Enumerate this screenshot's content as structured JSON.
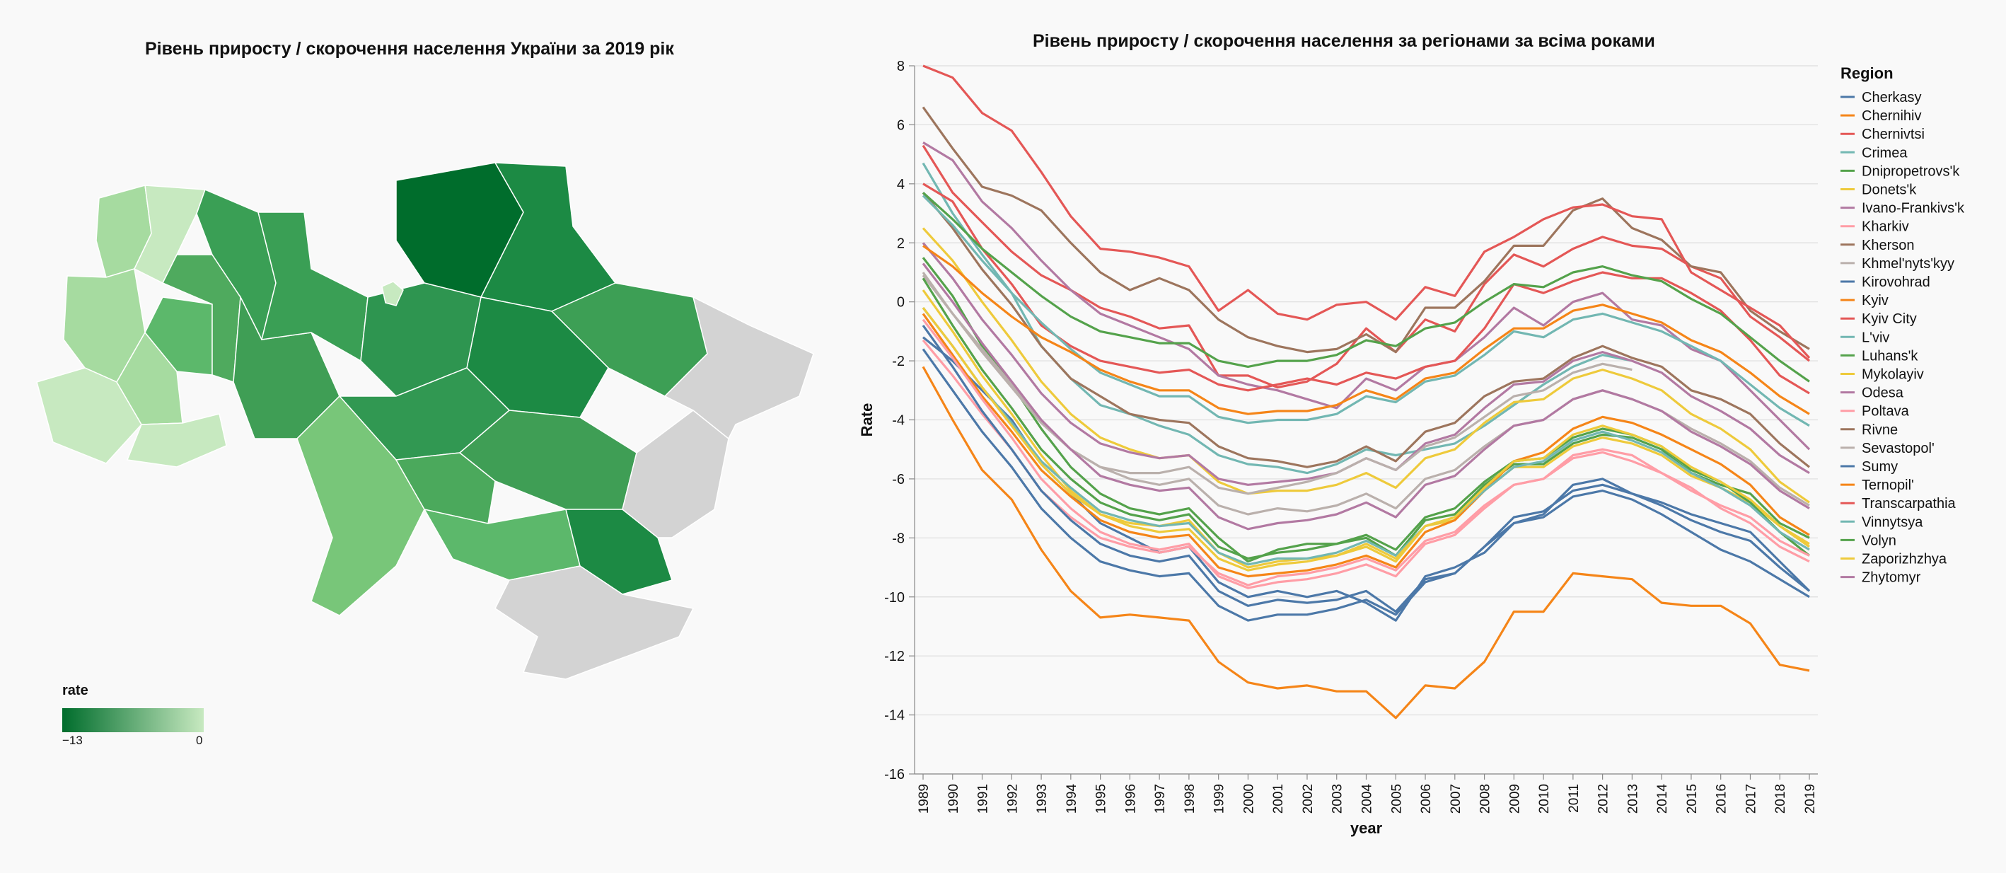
{
  "map": {
    "title": "Рівень приросту / скорочення населення України за 2019 рік",
    "legend_title": "rate",
    "legend_min_label": "−13",
    "legend_max_label": "0",
    "color_dark": "#006d2c",
    "color_light": "#c7e9c0",
    "no_data_color": "#d3d3d3"
  },
  "chart_data": {
    "type": "line",
    "title": "Рівень приросту / скорочення населення за регіонами за всіма роками",
    "xlabel": "year",
    "ylabel": "Rate",
    "ylim": [
      -16,
      8
    ],
    "y_ticks": [
      8,
      6,
      4,
      2,
      0,
      -2,
      -4,
      -6,
      -8,
      -10,
      -12,
      -14,
      -16
    ],
    "grid": "horizontal",
    "legend_title": "Region",
    "legend_position": "right",
    "x": [
      "1989",
      "1990",
      "1991",
      "1992",
      "1993",
      "1994",
      "1995",
      "1996",
      "1997",
      "1998",
      "1999",
      "2000",
      "2001",
      "2002",
      "2003",
      "2004",
      "2005",
      "2006",
      "2007",
      "2008",
      "2009",
      "2010",
      "2011",
      "2012",
      "2013",
      "2014",
      "2015",
      "2016",
      "2017",
      "2018",
      "2019"
    ],
    "series": [
      {
        "name": "Cherkasy",
        "color": "#4c78a8",
        "values": [
          -1.2,
          -2.0,
          -3.0,
          -4.0,
          -5.5,
          -6.5,
          -7.5,
          -8.0,
          -8.5,
          -8.3,
          -9.5,
          -10.0,
          -9.8,
          -10.0,
          -9.8,
          -10.2,
          -10.8,
          -9.3,
          -9.0,
          -8.5,
          -7.5,
          -7.2,
          -6.2,
          -6.0,
          -6.5,
          -6.8,
          -7.2,
          -7.5,
          -7.8,
          -8.8,
          -9.8
        ]
      },
      {
        "name": "Chernihiv",
        "color": "#f58518",
        "values": [
          -2.2,
          -4.0,
          -5.7,
          -6.7,
          -8.4,
          -9.8,
          -10.7,
          -10.6,
          -10.7,
          -10.8,
          -12.2,
          -12.9,
          -13.1,
          -13.0,
          -13.2,
          -13.2,
          -14.1,
          -13.0,
          -13.1,
          -12.2,
          -10.5,
          -10.5,
          -9.2,
          -9.3,
          -9.4,
          -10.2,
          -10.3,
          -10.3,
          -10.9,
          -12.3,
          -12.5
        ]
      },
      {
        "name": "Chernivtsi",
        "color": "#e45756",
        "values": [
          5.3,
          3.7,
          2.7,
          1.7,
          0.9,
          0.4,
          -0.2,
          -0.5,
          -0.9,
          -0.8,
          -2.5,
          -2.5,
          -2.9,
          -2.7,
          -2.1,
          -0.9,
          -1.7,
          -0.6,
          -1.0,
          0.6,
          1.6,
          1.2,
          1.8,
          2.2,
          1.9,
          1.8,
          1.2,
          0.8,
          -0.5,
          -1.2,
          -2.0
        ]
      },
      {
        "name": "Crimea",
        "color": "#72b7b2",
        "values": [
          4.7,
          3.0,
          1.6,
          0.3,
          -1.5,
          -2.6,
          -3.5,
          -3.8,
          -4.2,
          -4.5,
          -5.2,
          -5.5,
          -5.6,
          -5.8,
          -5.5,
          -5.0,
          -5.2,
          -5.0,
          -4.8,
          -4.2,
          -3.5,
          -2.8,
          -2.2,
          -1.8,
          -2.0,
          null,
          null,
          null,
          null,
          null,
          null
        ]
      },
      {
        "name": "Dnipropetrovs'k",
        "color": "#54a24b",
        "values": [
          1.5,
          0.2,
          -1.5,
          -2.8,
          -4.3,
          -5.6,
          -6.5,
          -7.0,
          -7.2,
          -7.0,
          -8.0,
          -8.8,
          -8.4,
          -8.2,
          -8.2,
          -8.0,
          -8.6,
          -7.4,
          -7.2,
          -6.2,
          -5.5,
          -5.5,
          -4.8,
          -4.5,
          -4.6,
          -5.0,
          -5.8,
          -6.2,
          -6.5,
          -7.5,
          -8.0
        ]
      },
      {
        "name": "Donets'k",
        "color": "#eeca3b",
        "values": [
          0.4,
          -1.0,
          -2.5,
          -3.8,
          -5.2,
          -6.4,
          -7.2,
          -7.5,
          -7.6,
          -7.4,
          -8.5,
          -9.0,
          -8.8,
          -8.7,
          -8.6,
          -8.3,
          -8.8,
          -7.6,
          -7.4,
          -6.4,
          -5.6,
          -5.6,
          -4.9,
          -4.6,
          -4.8,
          -5.2,
          -5.9,
          -6.3,
          -6.8,
          -7.6,
          -8.2
        ]
      },
      {
        "name": "Ivano-Frankivs'k",
        "color": "#b279a2",
        "values": [
          5.4,
          4.8,
          3.4,
          2.5,
          1.4,
          0.4,
          -0.4,
          -0.8,
          -1.2,
          -1.6,
          -2.5,
          -2.8,
          -3.0,
          -3.3,
          -3.6,
          -2.6,
          -3.0,
          -2.2,
          -2.0,
          -1.2,
          -0.2,
          -0.8,
          0.0,
          0.3,
          -0.6,
          -0.8,
          -1.6,
          -2.0,
          -3.0,
          -4.0,
          -5.0
        ]
      },
      {
        "name": "Kharkiv",
        "color": "#ff9da6",
        "values": [
          -1.3,
          -2.5,
          -3.8,
          -5.0,
          -6.4,
          -7.3,
          -8.0,
          -8.3,
          -8.5,
          -8.3,
          -9.2,
          -9.6,
          -9.3,
          -9.2,
          -9.0,
          -8.7,
          -9.1,
          -8.1,
          -7.8,
          -6.9,
          -6.2,
          -6.0,
          -5.2,
          -5.0,
          -5.2,
          -5.8,
          -6.3,
          -7.0,
          -7.5,
          -8.3,
          -8.8
        ]
      },
      {
        "name": "Kherson",
        "color": "#9d755d",
        "values": [
          3.7,
          2.5,
          1.1,
          -0.1,
          -1.5,
          -2.6,
          -3.2,
          -3.8,
          -4.0,
          -4.1,
          -4.9,
          -5.3,
          -5.4,
          -5.6,
          -5.4,
          -4.9,
          -5.4,
          -4.4,
          -4.1,
          -3.2,
          -2.7,
          -2.6,
          -1.9,
          -1.5,
          -1.9,
          -2.2,
          -3.0,
          -3.3,
          -3.8,
          -4.8,
          -5.6
        ]
      },
      {
        "name": "Khmel'nyts'kyy",
        "color": "#bab0ac",
        "values": [
          0.9,
          -0.4,
          -1.6,
          -2.8,
          -4.1,
          -5.0,
          -5.6,
          -6.0,
          -6.2,
          -6.0,
          -6.9,
          -7.2,
          -7.0,
          -7.1,
          -6.9,
          -6.5,
          -7.0,
          -6.0,
          -5.7,
          -4.9,
          -4.2,
          -4.0,
          -3.3,
          -3.0,
          -3.3,
          -3.7,
          -4.3,
          -4.8,
          -5.4,
          -6.3,
          -6.9
        ]
      },
      {
        "name": "Kirovohrad",
        "color": "#4c78a8",
        "values": [
          -0.8,
          -2.2,
          -3.7,
          -5.0,
          -6.4,
          -7.4,
          -8.2,
          -8.6,
          -8.8,
          -8.6,
          -9.8,
          -10.3,
          -10.1,
          -10.2,
          -10.1,
          -9.8,
          -10.5,
          -9.4,
          -9.2,
          -8.3,
          -7.3,
          -7.1,
          -6.4,
          -6.2,
          -6.5,
          -6.9,
          -7.4,
          -7.8,
          -8.1,
          -9.0,
          -9.8
        ]
      },
      {
        "name": "Kyiv",
        "color": "#f58518",
        "values": [
          -0.4,
          -1.8,
          -3.2,
          -4.4,
          -5.7,
          -6.6,
          -7.4,
          -7.8,
          -8.0,
          -7.9,
          -9.0,
          -9.3,
          -9.2,
          -9.1,
          -8.9,
          -8.6,
          -9.0,
          -7.8,
          -7.4,
          -6.4,
          -5.4,
          -5.1,
          -4.3,
          -3.9,
          -4.1,
          -4.5,
          -5.0,
          -5.5,
          -6.2,
          -7.3,
          -7.9
        ]
      },
      {
        "name": "Kyiv City",
        "color": "#e45756",
        "values": [
          4.0,
          3.4,
          1.8,
          0.6,
          -0.8,
          -1.5,
          -2.0,
          -2.2,
          -2.4,
          -2.3,
          -2.8,
          -3.0,
          -2.8,
          -2.6,
          -2.8,
          -2.4,
          -2.6,
          -2.2,
          -2.0,
          -0.9,
          0.6,
          0.3,
          0.7,
          1.0,
          0.8,
          0.8,
          0.3,
          -0.3,
          -1.3,
          -2.5,
          -3.1
        ]
      },
      {
        "name": "L'viv",
        "color": "#72b7b2",
        "values": [
          3.6,
          2.6,
          1.4,
          0.3,
          -0.7,
          -1.6,
          -2.4,
          -2.8,
          -3.2,
          -3.2,
          -3.9,
          -4.1,
          -4.0,
          -4.0,
          -3.8,
          -3.2,
          -3.4,
          -2.7,
          -2.5,
          -1.8,
          -1.0,
          -1.2,
          -0.6,
          -0.4,
          -0.7,
          -1.0,
          -1.5,
          -2.0,
          -2.8,
          -3.6,
          -4.2
        ]
      },
      {
        "name": "Luhans'k",
        "color": "#54a24b",
        "values": [
          0.8,
          -0.8,
          -2.3,
          -3.6,
          -5.0,
          -6.0,
          -6.8,
          -7.2,
          -7.4,
          -7.2,
          -8.3,
          -8.7,
          -8.5,
          -8.4,
          -8.2,
          -7.9,
          -8.4,
          -7.3,
          -7.0,
          -6.1,
          -5.4,
          -5.3,
          -4.6,
          -4.3,
          -4.5,
          -4.9,
          -5.7,
          -6.1,
          -6.8,
          -7.8,
          -8.6
        ]
      },
      {
        "name": "Mykolayiv",
        "color": "#eeca3b",
        "values": [
          2.5,
          1.4,
          0.0,
          -1.3,
          -2.7,
          -3.8,
          -4.6,
          -5.0,
          -5.3,
          -5.2,
          -6.1,
          -6.5,
          -6.4,
          -6.4,
          -6.2,
          -5.8,
          -6.3,
          -5.3,
          -5.0,
          -4.1,
          -3.4,
          -3.3,
          -2.6,
          -2.3,
          -2.6,
          -3.0,
          -3.8,
          -4.3,
          -5.0,
          -6.1,
          -6.8
        ]
      },
      {
        "name": "Odesa",
        "color": "#b279a2",
        "values": [
          2.0,
          0.8,
          -0.6,
          -1.8,
          -3.1,
          -4.1,
          -4.8,
          -5.1,
          -5.3,
          -5.2,
          -6.0,
          -6.2,
          -6.1,
          -6.0,
          -5.8,
          -5.3,
          -5.7,
          -4.8,
          -4.5,
          -3.6,
          -2.8,
          -2.7,
          -2.0,
          -1.7,
          -2.0,
          -2.4,
          -3.2,
          -3.7,
          -4.3,
          -5.2,
          -5.8
        ]
      },
      {
        "name": "Poltava",
        "color": "#ff9da6",
        "values": [
          -0.6,
          -1.9,
          -3.3,
          -4.6,
          -6.0,
          -7.0,
          -7.8,
          -8.2,
          -8.4,
          -8.2,
          -9.3,
          -9.7,
          -9.5,
          -9.4,
          -9.2,
          -8.9,
          -9.3,
          -8.2,
          -7.9,
          -7.0,
          -6.2,
          -6.0,
          -5.3,
          -5.1,
          -5.4,
          -5.8,
          -6.4,
          -6.9,
          -7.3,
          -8.1,
          -8.6
        ]
      },
      {
        "name": "Rivne",
        "color": "#9d755d",
        "values": [
          6.6,
          5.2,
          3.9,
          3.6,
          3.1,
          2.0,
          1.0,
          0.4,
          0.8,
          0.4,
          -0.6,
          -1.2,
          -1.5,
          -1.7,
          -1.6,
          -1.1,
          -1.7,
          -0.2,
          -0.2,
          0.7,
          1.9,
          1.9,
          3.1,
          3.5,
          2.5,
          2.1,
          1.2,
          1.0,
          -0.3,
          -1.0,
          -1.6
        ]
      },
      {
        "name": "Sevastopol'",
        "color": "#bab0ac",
        "values": [
          1.0,
          -0.4,
          -1.7,
          -2.9,
          -4.1,
          -5.0,
          -5.6,
          -5.8,
          -5.8,
          -5.6,
          -6.3,
          -6.5,
          -6.3,
          -6.1,
          -5.8,
          -5.3,
          -5.7,
          -4.9,
          -4.6,
          -3.9,
          -3.2,
          -3.0,
          -2.4,
          -2.1,
          -2.3,
          null,
          null,
          null,
          null,
          null,
          null
        ]
      },
      {
        "name": "Sumy",
        "color": "#4c78a8",
        "values": [
          -1.6,
          -3.0,
          -4.4,
          -5.6,
          -7.0,
          -8.0,
          -8.8,
          -9.1,
          -9.3,
          -9.2,
          -10.3,
          -10.8,
          -10.6,
          -10.6,
          -10.4,
          -10.1,
          -10.6,
          -9.5,
          -9.2,
          -8.3,
          -7.5,
          -7.3,
          -6.6,
          -6.4,
          -6.7,
          -7.2,
          -7.8,
          -8.4,
          -8.8,
          -9.4,
          -10.0
        ]
      },
      {
        "name": "Ternopil'",
        "color": "#f58518",
        "values": [
          1.9,
          1.2,
          0.3,
          -0.5,
          -1.2,
          -1.7,
          -2.3,
          -2.7,
          -3.0,
          -3.0,
          -3.6,
          -3.8,
          -3.7,
          -3.7,
          -3.5,
          -3.0,
          -3.3,
          -2.6,
          -2.4,
          -1.6,
          -0.9,
          -0.9,
          -0.3,
          -0.1,
          -0.4,
          -0.7,
          -1.3,
          -1.7,
          -2.4,
          -3.2,
          -3.8
        ]
      },
      {
        "name": "Transcarpathia",
        "color": "#e45756",
        "values": [
          8.0,
          7.6,
          6.4,
          5.8,
          4.4,
          2.9,
          1.8,
          1.7,
          1.5,
          1.2,
          -0.3,
          0.4,
          -0.4,
          -0.6,
          -0.1,
          0.0,
          -0.6,
          0.5,
          0.2,
          1.7,
          2.2,
          2.8,
          3.2,
          3.3,
          2.9,
          2.8,
          1.0,
          0.4,
          -0.2,
          -0.8,
          -1.9
        ]
      },
      {
        "name": "Vinnytsya",
        "color": "#72b7b2",
        "values": [
          -0.2,
          -1.5,
          -2.9,
          -4.1,
          -5.4,
          -6.3,
          -7.1,
          -7.4,
          -7.6,
          -7.5,
          -8.5,
          -8.9,
          -8.7,
          -8.7,
          -8.5,
          -8.1,
          -8.6,
          -7.6,
          -7.3,
          -6.4,
          -5.6,
          -5.4,
          -4.7,
          -4.4,
          -4.7,
          -5.1,
          -5.8,
          -6.3,
          -6.9,
          -7.8,
          -8.4
        ]
      },
      {
        "name": "Volyn",
        "color": "#54a24b",
        "values": [
          3.7,
          2.8,
          1.8,
          1.0,
          0.2,
          -0.5,
          -1.0,
          -1.2,
          -1.4,
          -1.4,
          -2.0,
          -2.2,
          -2.0,
          -2.0,
          -1.8,
          -1.3,
          -1.5,
          -0.9,
          -0.7,
          0.0,
          0.6,
          0.5,
          1.0,
          1.2,
          0.9,
          0.7,
          0.1,
          -0.4,
          -1.2,
          -2.0,
          -2.7
        ]
      },
      {
        "name": "Zaporizhzhya",
        "color": "#eeca3b",
        "values": [
          -0.2,
          -1.5,
          -2.9,
          -4.2,
          -5.5,
          -6.5,
          -7.2,
          -7.6,
          -7.8,
          -7.7,
          -8.7,
          -9.1,
          -8.9,
          -8.8,
          -8.6,
          -8.2,
          -8.7,
          -7.6,
          -7.3,
          -6.3,
          -5.4,
          -5.3,
          -4.5,
          -4.2,
          -4.5,
          -4.9,
          -5.6,
          -6.1,
          -6.7,
          -7.6,
          -8.3
        ]
      },
      {
        "name": "Zhytomyr",
        "color": "#b279a2",
        "values": [
          1.3,
          0.0,
          -1.4,
          -2.7,
          -4.0,
          -5.0,
          -5.9,
          -6.2,
          -6.4,
          -6.3,
          -7.3,
          -7.7,
          -7.5,
          -7.4,
          -7.2,
          -6.8,
          -7.3,
          -6.2,
          -5.9,
          -5.0,
          -4.2,
          -4.0,
          -3.3,
          -3.0,
          -3.3,
          -3.7,
          -4.4,
          -4.9,
          -5.5,
          -6.4,
          -7.0
        ]
      }
    ]
  }
}
